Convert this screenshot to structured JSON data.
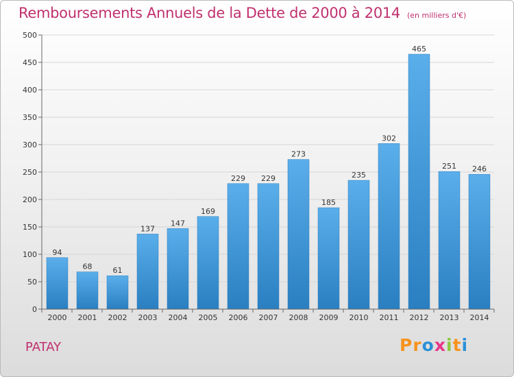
{
  "header": {
    "title": "Remboursements Annuels de la Dette de 2000 à 2014",
    "subtitle": "(en milliers d'€)"
  },
  "footer": {
    "commune": "PATAY",
    "brand": {
      "letters": [
        "P",
        "r",
        "o",
        "x",
        "i",
        "t",
        "i"
      ],
      "colors": [
        "#f7931e",
        "#f7931e",
        "#2b8fd6",
        "#e8348a",
        "#8cc63f",
        "#f7931e",
        "#2b8fd6"
      ]
    }
  },
  "colors": {
    "title": "#c0306e",
    "bar_top": "#5aaeea",
    "bar_bottom": "#2a7fc1"
  },
  "chart_data": {
    "type": "bar",
    "categories": [
      "2000",
      "2001",
      "2002",
      "2003",
      "2004",
      "2005",
      "2006",
      "2007",
      "2008",
      "2009",
      "2010",
      "2011",
      "2012",
      "2013",
      "2014"
    ],
    "values": [
      94,
      68,
      61,
      137,
      147,
      169,
      229,
      229,
      273,
      185,
      235,
      302,
      465,
      251,
      246
    ],
    "ylim": [
      0,
      500
    ],
    "yticks": [
      0,
      50,
      100,
      150,
      200,
      250,
      300,
      350,
      400,
      450,
      500
    ],
    "grid": true,
    "data_labels": true
  }
}
